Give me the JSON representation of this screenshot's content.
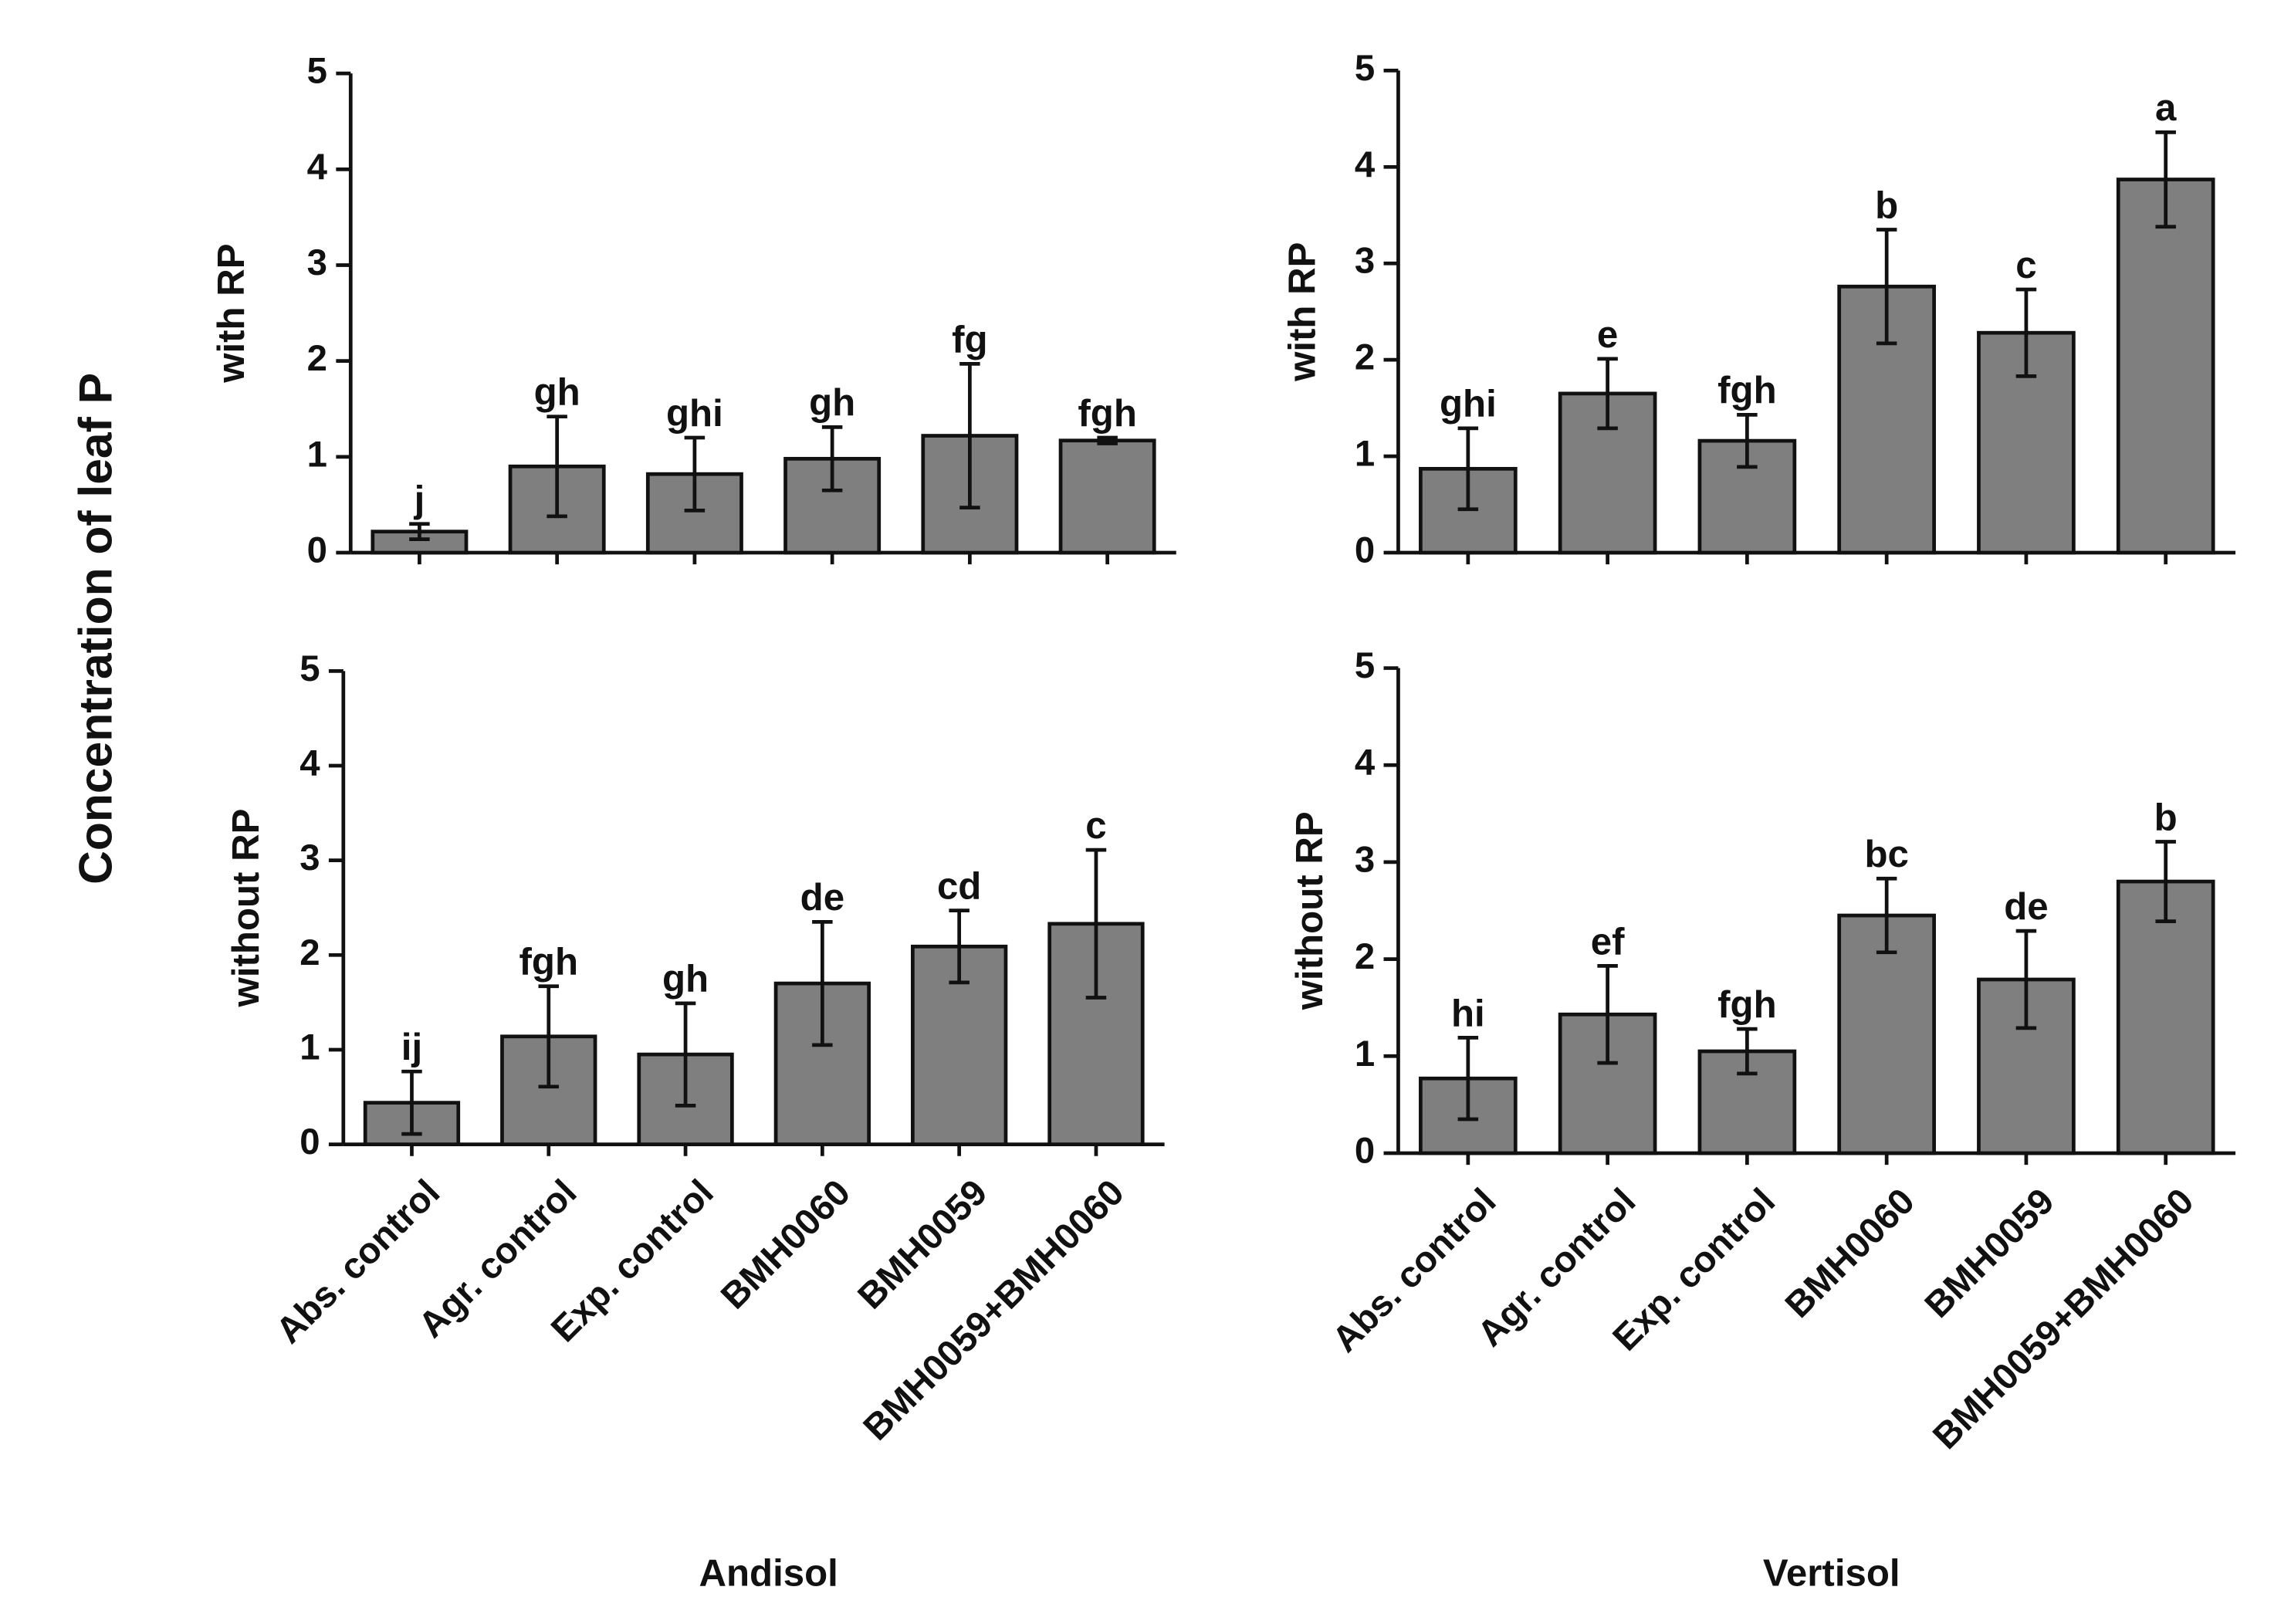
{
  "ylabel": "Concentration of leaf P",
  "chart_data": [
    {
      "type": "bar",
      "ylabel": "with RP",
      "ylim": [
        0,
        5
      ],
      "yticks": [
        0,
        1,
        2,
        3,
        4,
        5
      ],
      "color": "#7f7f7f",
      "values": [
        0.22,
        0.9,
        0.82,
        0.98,
        1.22,
        1.17
      ],
      "errors": [
        0.08,
        0.52,
        0.38,
        0.33,
        0.75,
        0.03
      ],
      "annotations": [
        "j",
        "gh",
        "ghi",
        "gh",
        "fg",
        "fgh"
      ]
    },
    {
      "type": "bar",
      "ylabel": "with RP",
      "ylim": [
        0,
        5
      ],
      "yticks": [
        0,
        1,
        2,
        3,
        4,
        5
      ],
      "color": "#7f7f7f",
      "values": [
        0.87,
        1.65,
        1.16,
        2.76,
        2.28,
        3.87
      ],
      "errors": [
        0.42,
        0.36,
        0.27,
        0.59,
        0.45,
        0.49
      ],
      "annotations": [
        "ghi",
        "e",
        "fgh",
        "b",
        "c",
        "a"
      ]
    },
    {
      "type": "bar",
      "ylabel": "without RP",
      "xlabel": "Andisol",
      "ylim": [
        0,
        5
      ],
      "yticks": [
        0,
        1,
        2,
        3,
        4,
        5
      ],
      "color": "#7f7f7f",
      "categories": [
        "Abs. control",
        "Agr. control",
        "Exp. control",
        "BMH0060",
        "BMH0059",
        "BMH0059+BMH0060"
      ],
      "values": [
        0.44,
        1.14,
        0.95,
        1.7,
        2.09,
        2.33
      ],
      "errors": [
        0.33,
        0.53,
        0.54,
        0.65,
        0.38,
        0.78
      ],
      "annotations": [
        "ij",
        "fgh",
        "gh",
        "de",
        "cd",
        "c"
      ]
    },
    {
      "type": "bar",
      "ylabel": "without RP",
      "xlabel": "Vertisol",
      "ylim": [
        0,
        5
      ],
      "yticks": [
        0,
        1,
        2,
        3,
        4,
        5
      ],
      "color": "#7f7f7f",
      "categories": [
        "Abs. control",
        "Agr. control",
        "Exp. control",
        "BMH0060",
        "BMH0059",
        "BMH0059+BMH0060"
      ],
      "values": [
        0.77,
        1.43,
        1.05,
        2.45,
        1.79,
        2.8
      ],
      "errors": [
        0.42,
        0.5,
        0.23,
        0.38,
        0.5,
        0.41
      ],
      "annotations": [
        "hi",
        "ef",
        "fgh",
        "bc",
        "de",
        "b"
      ]
    }
  ]
}
